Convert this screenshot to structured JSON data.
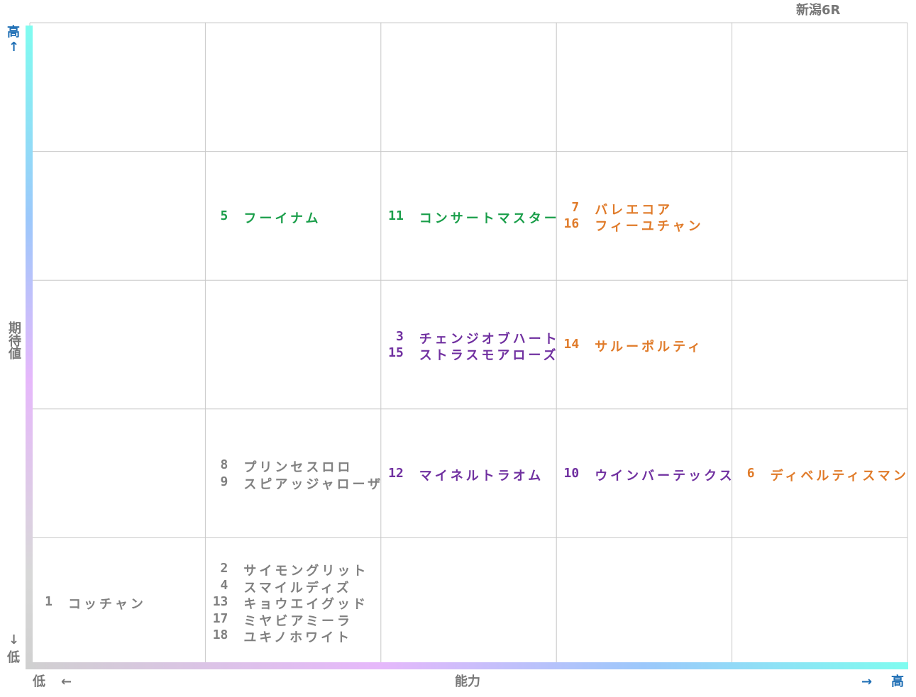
{
  "title": "新潟6R",
  "y_axis": {
    "high": "高",
    "high_arrow": "↑",
    "label": "期待値",
    "low_arrow": "↓",
    "low": "低"
  },
  "x_axis": {
    "low": "低",
    "low_arrow": "←",
    "label": "能力",
    "high_arrow": "→",
    "high": "高"
  },
  "cells": [
    {
      "row": 1,
      "col": 1,
      "color": "#1a9e4a",
      "entries": [
        {
          "number": 5,
          "name": "フーイナム"
        }
      ]
    },
    {
      "row": 1,
      "col": 2,
      "color": "#1a9e4a",
      "entries": [
        {
          "number": 11,
          "name": "コンサートマスター"
        }
      ]
    },
    {
      "row": 1,
      "col": 3,
      "color": "#e07b2a",
      "entries": [
        {
          "number": 7,
          "name": "バレエコア"
        },
        {
          "number": 16,
          "name": "フィーユチャン"
        }
      ]
    },
    {
      "row": 2,
      "col": 2,
      "color": "#7030a0",
      "entries": [
        {
          "number": 3,
          "name": "チェンジオブハート"
        },
        {
          "number": 15,
          "name": "ストラスモアローズ"
        }
      ]
    },
    {
      "row": 2,
      "col": 3,
      "color": "#e07b2a",
      "entries": [
        {
          "number": 14,
          "name": "サルーポルティ"
        }
      ]
    },
    {
      "row": 3,
      "col": 1,
      "color": "#808080",
      "entries": [
        {
          "number": 8,
          "name": "プリンセスロロ"
        },
        {
          "number": 9,
          "name": "スピアッジャローザ"
        }
      ]
    },
    {
      "row": 3,
      "col": 2,
      "color": "#7030a0",
      "entries": [
        {
          "number": 12,
          "name": "マイネルトラオム"
        }
      ]
    },
    {
      "row": 3,
      "col": 3,
      "color": "#7030a0",
      "entries": [
        {
          "number": 10,
          "name": "ウインバーテックス"
        }
      ]
    },
    {
      "row": 3,
      "col": 4,
      "color": "#e07b2a",
      "entries": [
        {
          "number": 6,
          "name": "ディベルティスマン"
        }
      ]
    },
    {
      "row": 4,
      "col": 0,
      "color": "#808080",
      "entries": [
        {
          "number": 1,
          "name": "コッチャン"
        }
      ]
    },
    {
      "row": 4,
      "col": 1,
      "color": "#808080",
      "entries": [
        {
          "number": 2,
          "name": "サイモングリット"
        },
        {
          "number": 4,
          "name": "スマイルディズ"
        },
        {
          "number": 13,
          "name": "キョウエイグッド"
        },
        {
          "number": 17,
          "name": "ミヤビアミーラ"
        },
        {
          "number": 18,
          "name": "ユキノホワイト"
        }
      ]
    }
  ]
}
